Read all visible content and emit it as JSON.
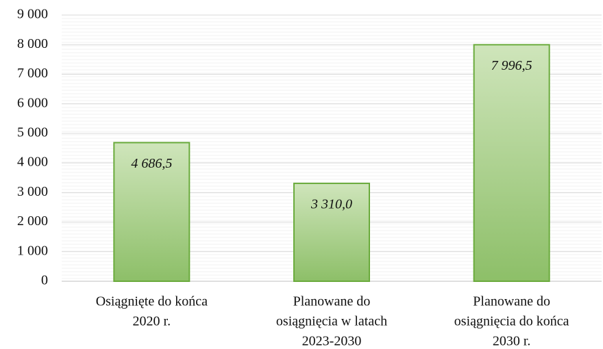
{
  "chart_data": {
    "type": "bar",
    "categories": [
      [
        "Osiągnięte do końca",
        "2020 r."
      ],
      [
        "Planowane do",
        "osiągnięcia w latach",
        "2023-2030"
      ],
      [
        "Planowane do",
        "osiągnięcia do końca",
        "2030 r."
      ]
    ],
    "values": [
      4686.5,
      3310.0,
      7996.5
    ],
    "value_labels": [
      "4 686,5",
      "3 310,0",
      "7 996,5"
    ],
    "color": "#9dc97a",
    "ylim": [
      0,
      9000
    ],
    "yticks": [
      0,
      {
        "value": 1000,
        "label": "1 000"
      },
      {
        "value": 2000,
        "label": "2 000"
      },
      {
        "value": 3000,
        "label": "3 000"
      },
      {
        "value": 4000,
        "label": "4 000"
      },
      {
        "value": 5000,
        "label": "5 000"
      },
      {
        "value": 6000,
        "label": "6 000"
      },
      {
        "value": 7000,
        "label": "7 000"
      },
      {
        "value": 8000,
        "label": "8 000"
      },
      {
        "value": 9000,
        "label": "9 000"
      }
    ],
    "grid": true
  }
}
